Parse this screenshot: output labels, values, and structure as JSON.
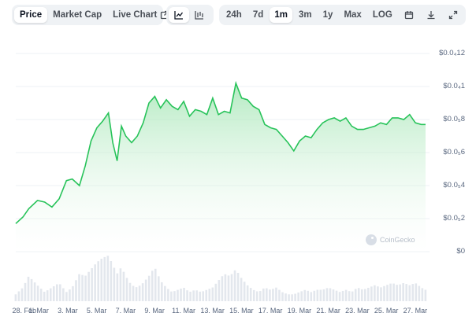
{
  "toolbar": {
    "metric_tabs": [
      {
        "label": "Price",
        "active": true
      },
      {
        "label": "Market Cap",
        "active": false
      },
      {
        "label": "Live Chart",
        "active": false,
        "icon": "external-link-icon"
      }
    ],
    "chart_type_buttons": [
      {
        "icon": "line-chart-icon",
        "active": true
      },
      {
        "icon": "candlestick-chart-icon",
        "active": false
      }
    ],
    "ranges": [
      {
        "label": "24h",
        "active": false
      },
      {
        "label": "7d",
        "active": false
      },
      {
        "label": "1m",
        "active": true
      },
      {
        "label": "3m",
        "active": false
      },
      {
        "label": "1y",
        "active": false
      },
      {
        "label": "Max",
        "active": false
      },
      {
        "label": "LOG",
        "active": false
      }
    ],
    "tool_icons": [
      "calendar-icon",
      "download-icon",
      "expand-icon"
    ]
  },
  "chart": {
    "watermark": "CoinGecko",
    "colors": {
      "line": "#28c35a",
      "fill_top": "#9be3ad",
      "fill_bottom": "#ffffff",
      "volume": "#e3e7ed",
      "grid": "#eef1f4"
    }
  },
  "chart_data": {
    "type": "area",
    "y_tick_labels": [
      "$0.0₄12",
      "$0.0₄1",
      "$0.0₅8",
      "$0.0₅6",
      "$0.0₅4",
      "$0.0₅2",
      "$0"
    ],
    "y_ticks": [
      0.00012,
      0.0001,
      8e-05,
      6e-05,
      4e-05,
      2e-05,
      0
    ],
    "ylim": [
      0,
      0.00012
    ],
    "x_tick_labels": [
      "28. Feb",
      "1. Mar",
      "3. Mar",
      "5. Mar",
      "7. Mar",
      "9. Mar",
      "11. Mar",
      "13. Mar",
      "15. Mar",
      "17. Mar",
      "19. Mar",
      "21. Mar",
      "23. Mar",
      "25. Mar",
      "27. Mar"
    ],
    "x_tick_days": [
      0,
      1,
      3,
      5,
      7,
      9,
      11,
      13,
      15,
      17,
      19,
      21,
      23,
      25,
      27
    ],
    "xlim_days": [
      -0.6,
      27.7
    ],
    "grid": true,
    "series": [
      {
        "x_days": [
          -0.6,
          -0.1,
          0.3,
          0.9,
          1.4,
          1.9,
          2.4,
          2.9,
          3.3,
          3.8,
          4.2,
          4.6,
          5.0,
          5.4,
          5.8,
          6.1,
          6.4,
          6.7,
          7.0,
          7.4,
          7.8,
          8.2,
          8.6,
          9.0,
          9.4,
          9.8,
          10.2,
          10.6,
          11.0,
          11.4,
          11.8,
          12.2,
          12.6,
          13.0,
          13.4,
          13.8,
          14.2,
          14.6,
          15.0,
          15.4,
          15.8,
          16.2,
          16.6,
          17.0,
          17.4,
          17.8,
          18.2,
          18.6,
          19.0,
          19.4,
          19.8,
          20.2,
          20.6,
          21.0,
          21.4,
          21.8,
          22.2,
          22.6,
          23.0,
          23.4,
          23.8,
          24.2,
          24.6,
          25.0,
          25.4,
          25.8,
          26.2,
          26.6,
          27.0,
          27.4,
          27.7
        ],
        "price": [
          1.7e-05,
          2.1e-05,
          2.6e-05,
          3.1e-05,
          3e-05,
          2.7e-05,
          3.2e-05,
          4.3e-05,
          4.4e-05,
          4e-05,
          5.2e-05,
          6.7e-05,
          7.5e-05,
          7.9e-05,
          8.4e-05,
          6.6e-05,
          5.5e-05,
          7.6e-05,
          7e-05,
          6.6e-05,
          7e-05,
          7.8e-05,
          9e-05,
          9.4e-05,
          8.7e-05,
          9.2e-05,
          8.8e-05,
          8.6e-05,
          9.1e-05,
          8.2e-05,
          8.6e-05,
          8.5e-05,
          8.3e-05,
          9.3e-05,
          8.3e-05,
          8.5e-05,
          8.4e-05,
          0.000102,
          9.3e-05,
          9.2e-05,
          8.8e-05,
          8.6e-05,
          7.7e-05,
          7.5e-05,
          7.4e-05,
          7e-05,
          6.6e-05,
          6.1e-05,
          6.7e-05,
          7e-05,
          6.9e-05,
          7.4e-05,
          7.8e-05,
          8e-05,
          8.1e-05,
          7.9e-05,
          8.1e-05,
          7.6e-05,
          7.4e-05,
          7.4e-05,
          7.5e-05,
          7.6e-05,
          7.8e-05,
          7.7e-05,
          8.1e-05,
          8.1e-05,
          8e-05,
          8.3e-05,
          7.8e-05,
          7.7e-05,
          7.7e-05
        ],
        "volume": [
          0.15,
          0.3,
          0.55,
          0.35,
          0.2,
          0.3,
          0.4,
          0.2,
          0.3,
          0.6,
          0.55,
          0.7,
          0.85,
          0.95,
          1.0,
          0.8,
          0.6,
          0.75,
          0.55,
          0.35,
          0.3,
          0.4,
          0.55,
          0.75,
          0.45,
          0.3,
          0.2,
          0.25,
          0.3,
          0.2,
          0.25,
          0.2,
          0.25,
          0.3,
          0.45,
          0.6,
          0.55,
          0.7,
          0.5,
          0.35,
          0.25,
          0.2,
          0.3,
          0.25,
          0.3,
          0.2,
          0.15,
          0.15,
          0.2,
          0.25,
          0.2,
          0.25,
          0.25,
          0.3,
          0.25,
          0.2,
          0.25,
          0.2,
          0.3,
          0.25,
          0.3,
          0.35,
          0.3,
          0.35,
          0.4,
          0.35,
          0.4,
          0.35,
          0.4,
          0.3,
          0.25
        ]
      }
    ]
  }
}
